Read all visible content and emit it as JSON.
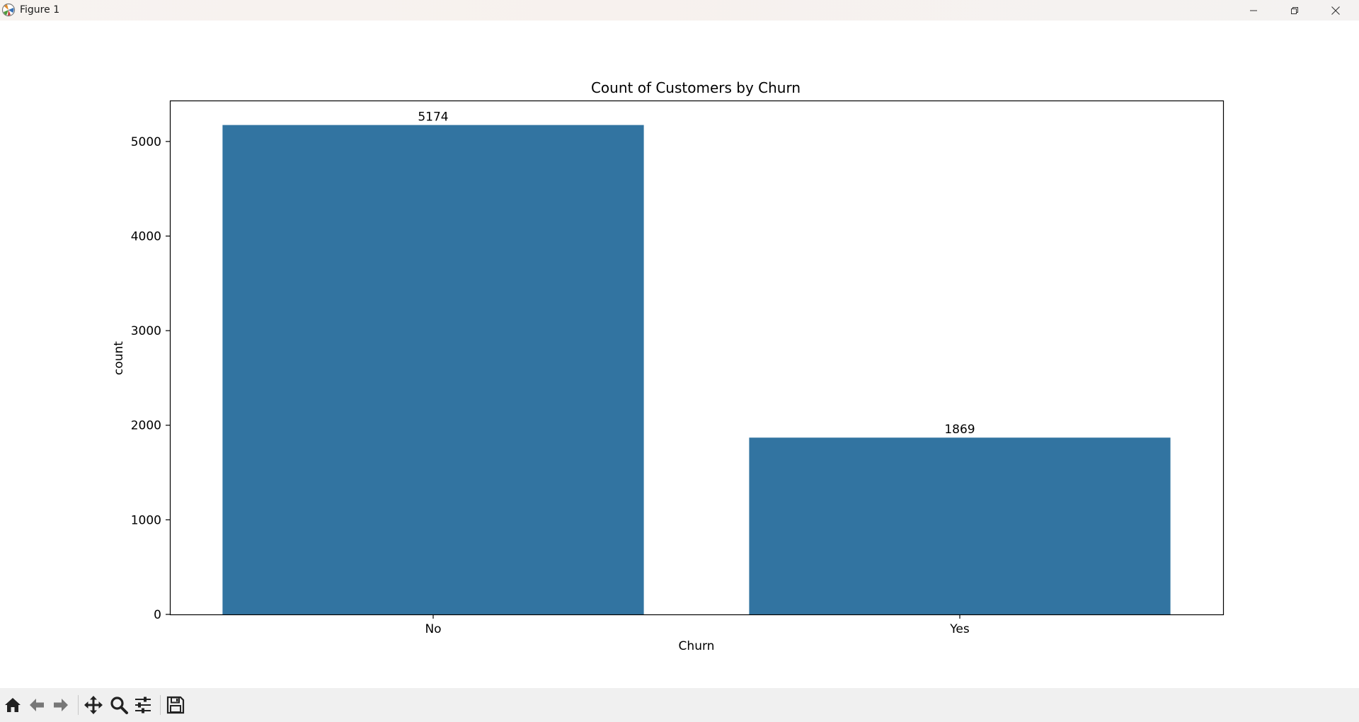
{
  "window": {
    "title": "Figure 1",
    "icons": [
      "matplotlib-app-icon",
      "minimize-icon",
      "restore-icon",
      "close-icon"
    ]
  },
  "toolbar": {
    "icons": [
      "home-icon",
      "back-arrow-icon",
      "forward-arrow-icon",
      "pan-icon",
      "zoom-icon",
      "configure-subplots-icon",
      "save-icon"
    ]
  },
  "chart_data": {
    "type": "bar",
    "title": "Count of Customers by Churn",
    "xlabel": "Churn",
    "ylabel": "count",
    "categories": [
      "No",
      "Yes"
    ],
    "values": [
      5174,
      1869
    ],
    "data_labels": [
      "5174",
      "1869"
    ],
    "ylim": [
      0,
      5433
    ],
    "yticks": [
      0,
      1000,
      2000,
      3000,
      4000,
      5000
    ],
    "ytick_labels": [
      "0",
      "1000",
      "2000",
      "3000",
      "4000",
      "5000"
    ],
    "bar_color": "#3274a1",
    "grid": false,
    "legend": "none"
  }
}
